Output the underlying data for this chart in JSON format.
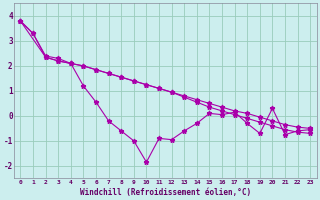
{
  "xlabel": "Windchill (Refroidissement éolien,°C)",
  "bg_color": "#cceeee",
  "grid_color": "#99ccbb",
  "line_color": "#aa00aa",
  "xlim": [
    -0.5,
    23.5
  ],
  "ylim": [
    -2.5,
    4.5
  ],
  "xticks": [
    0,
    1,
    2,
    3,
    4,
    5,
    6,
    7,
    8,
    9,
    10,
    11,
    12,
    13,
    14,
    15,
    16,
    17,
    18,
    19,
    20,
    21,
    22,
    23
  ],
  "yticks": [
    -2,
    -1,
    0,
    1,
    2,
    3,
    4
  ],
  "series": [
    {
      "x": [
        0,
        1,
        2,
        3,
        4,
        5,
        6,
        7,
        8,
        9,
        10,
        11,
        12,
        13,
        14,
        15,
        16,
        17,
        18,
        19,
        20,
        21,
        22,
        23
      ],
      "y": [
        3.8,
        3.3,
        2.4,
        2.3,
        2.1,
        2.0,
        1.85,
        1.7,
        1.55,
        1.4,
        1.25,
        1.1,
        0.95,
        0.8,
        0.65,
        0.5,
        0.35,
        0.2,
        0.1,
        -0.05,
        -0.2,
        -0.35,
        -0.45,
        -0.5
      ]
    },
    {
      "x": [
        0,
        2,
        3,
        4,
        5,
        6,
        7,
        8,
        9,
        10,
        11,
        12,
        13,
        14,
        15,
        16,
        17,
        18,
        19,
        20,
        21,
        22,
        23
      ],
      "y": [
        3.8,
        2.35,
        2.2,
        2.1,
        2.0,
        1.85,
        1.7,
        1.55,
        1.4,
        1.25,
        1.1,
        0.95,
        0.75,
        0.55,
        0.35,
        0.2,
        0.05,
        -0.1,
        -0.25,
        -0.4,
        -0.55,
        -0.65,
        -0.7
      ]
    },
    {
      "x": [
        0,
        1,
        2,
        3,
        4,
        5,
        6,
        7,
        8,
        9,
        10,
        11,
        12,
        13,
        14,
        15,
        16,
        17,
        18,
        19,
        20,
        21,
        22,
        23
      ],
      "y": [
        3.8,
        3.3,
        2.35,
        2.2,
        2.1,
        1.2,
        0.55,
        -0.2,
        -0.6,
        -1.0,
        -1.85,
        -0.9,
        -0.95,
        -0.6,
        -0.3,
        0.1,
        0.05,
        0.15,
        -0.3,
        -0.7,
        0.3,
        -0.75,
        -0.6,
        -0.55
      ]
    }
  ],
  "marker": "*",
  "markersize": 3.5,
  "linewidth": 0.8
}
